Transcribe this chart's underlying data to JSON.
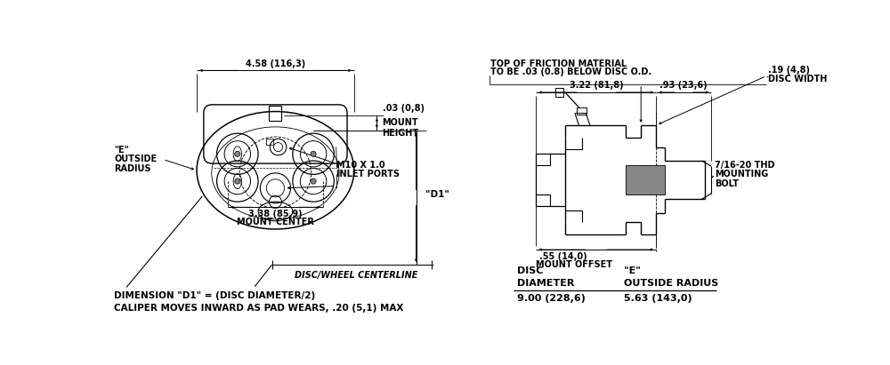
{
  "bg_color": "#ffffff",
  "line_color": "#000000",
  "annotation_fontsize": 7.0,
  "bottom_notes": [
    "DIMENSION \"D1\" = (DISC DIAMETER/2)",
    "CALIPER MOVES INWARD AS PAD WEARS, .20 (5,1) MAX"
  ],
  "table_headers": [
    "DISC",
    "\"E\""
  ],
  "table_subheaders": [
    "DIAMETER",
    "OUTSIDE RADIUS"
  ],
  "table_data": [
    [
      "9.00 (228,6)",
      "5.63 (143,0)"
    ]
  ],
  "top_note_line1": "TOP OF FRICTION MATERIAL",
  "top_note_line2": "TO BE .03 (0.8) BELOW DISC O.D.",
  "dim_458": "4.58 (116,3)",
  "dim_003": ".03 (0,8)",
  "mount_height_lbl": "MOUNT\nHEIGHT",
  "dim_d1": "\"D1\"",
  "dim_338": "3.38 (85,9)",
  "mount_center": "MOUNT CENTER",
  "m10_line1": "M10 X 1.0",
  "m10_line2": "INLET PORTS",
  "e_label_lines": [
    "\"E\"",
    "OUTSIDE",
    "RADIUS"
  ],
  "disc_wheel": "DISC/WHEEL CENTERLINE",
  "dim_322": "3.22 (81,8)",
  "dim_093": ".93 (23,6)",
  "dim_019": ".19 (4,8)",
  "disc_width": "DISC WIDTH",
  "dim_055": ".55 (14,0)",
  "mount_offset": "MOUNT OFFSET",
  "bolt_line1": "7/16-20 THD",
  "bolt_line2": "MOUNTING",
  "bolt_line3": "BOLT"
}
